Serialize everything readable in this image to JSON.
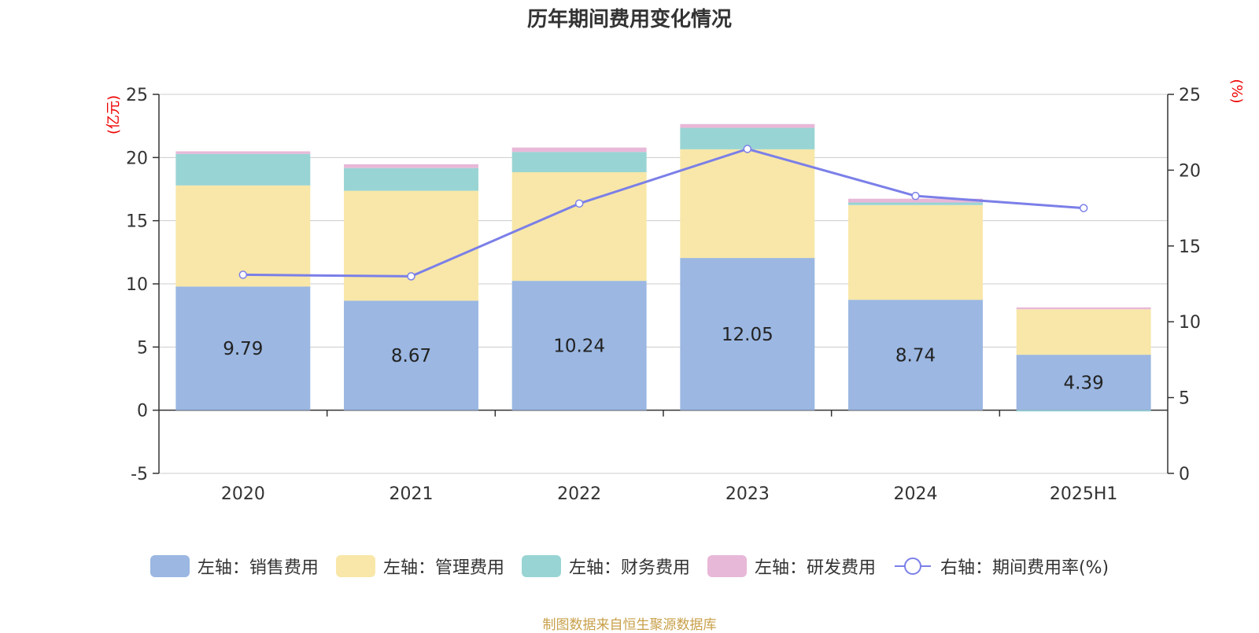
{
  "chart_data": {
    "type": "bar",
    "title": "历年期间费用变化情况",
    "categories": [
      "2020",
      "2021",
      "2022",
      "2023",
      "2024",
      "2025H1"
    ],
    "left_axis": {
      "label": "(亿元)",
      "range": [
        -5,
        25
      ],
      "ticks": [
        -5,
        0,
        5,
        10,
        15,
        20,
        25
      ]
    },
    "right_axis": {
      "label": "(%)",
      "range": [
        0,
        25
      ],
      "ticks": [
        0,
        5,
        10,
        15,
        20,
        25
      ]
    },
    "series": [
      {
        "name": "左轴：销售费用",
        "type": "bar",
        "axis": "left",
        "color": "#9bb7e2",
        "values": [
          9.79,
          8.67,
          10.24,
          12.05,
          8.74,
          4.39
        ],
        "show_labels": true
      },
      {
        "name": "左轴：管理费用",
        "type": "bar",
        "axis": "left",
        "color": "#f8e7a8",
        "values": [
          8.0,
          8.7,
          8.6,
          8.6,
          7.5,
          3.6
        ],
        "show_labels": false
      },
      {
        "name": "左轴：财务费用",
        "type": "bar",
        "axis": "left",
        "color": "#99d4d4",
        "values": [
          2.5,
          1.8,
          1.6,
          1.7,
          0.2,
          -0.1
        ],
        "show_labels": false
      },
      {
        "name": "左轴：研发费用",
        "type": "bar",
        "axis": "left",
        "color": "#e8b8d8",
        "values": [
          0.2,
          0.3,
          0.35,
          0.3,
          0.3,
          0.15
        ],
        "show_labels": false
      },
      {
        "name": "右轴：期间费用率(%)",
        "type": "line",
        "axis": "right",
        "color": "#7b7fe8",
        "values": [
          13.1,
          13.0,
          17.8,
          21.4,
          18.3,
          17.5
        ]
      }
    ],
    "grid": true,
    "legend_position": "bottom"
  },
  "source_note": "制图数据来自恒生聚源数据库"
}
